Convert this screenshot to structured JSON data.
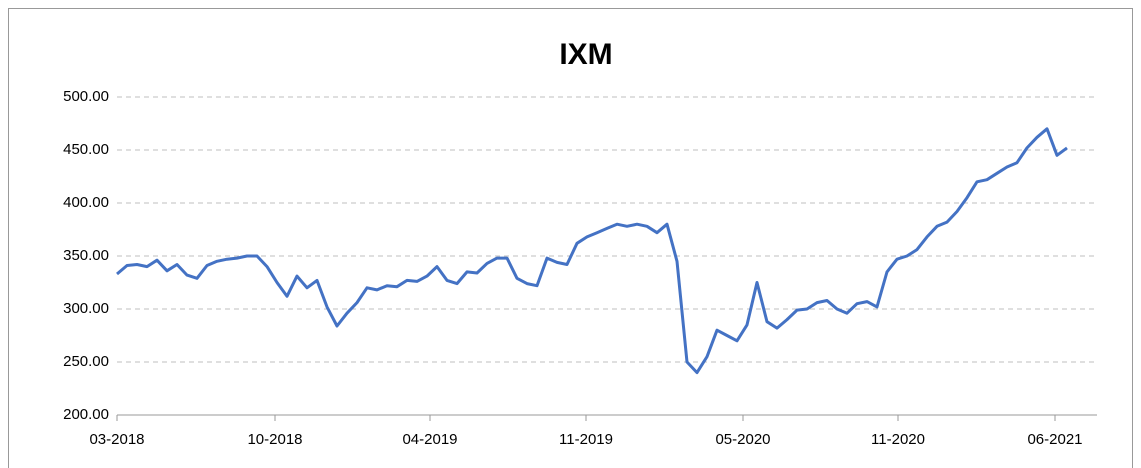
{
  "chart_data": {
    "type": "line",
    "title": "IXM",
    "series": [
      {
        "name": "IXM",
        "color": "#4472c4",
        "values": [
          333,
          341,
          342,
          340,
          346,
          336,
          342,
          332,
          329,
          341,
          345,
          347,
          348,
          350,
          350,
          340,
          325,
          312,
          331,
          320,
          327,
          302,
          284,
          296,
          306,
          320,
          318,
          322,
          321,
          327,
          326,
          331,
          340,
          327,
          324,
          335,
          334,
          343,
          348,
          348,
          329,
          324,
          322,
          348,
          344,
          342,
          362,
          368,
          372,
          376,
          380,
          378,
          380,
          378,
          372,
          380,
          345,
          250,
          240,
          255,
          280,
          275,
          270,
          285,
          325,
          288,
          282,
          290,
          299,
          300,
          306,
          308,
          300,
          296,
          305,
          307,
          302,
          335,
          347,
          350,
          356,
          368,
          378,
          382,
          392,
          405,
          420,
          422,
          428,
          434,
          438,
          452,
          462,
          470,
          445,
          452
        ]
      }
    ],
    "xlim": [
      0,
      98
    ],
    "xticks": [
      {
        "value": 0,
        "label": "03-2018"
      },
      {
        "value": 15.8,
        "label": "10-2018"
      },
      {
        "value": 31.3,
        "label": "04-2019"
      },
      {
        "value": 46.9,
        "label": "11-2019"
      },
      {
        "value": 62.6,
        "label": "05-2020"
      },
      {
        "value": 78.1,
        "label": "11-2020"
      },
      {
        "value": 93.8,
        "label": "06-2021"
      }
    ],
    "ylim": [
      200,
      500
    ],
    "yticks": [
      {
        "value": 200,
        "label": "200.00"
      },
      {
        "value": 250,
        "label": "250.00"
      },
      {
        "value": 300,
        "label": "300.00"
      },
      {
        "value": 350,
        "label": "350.00"
      },
      {
        "value": 400,
        "label": "400.00"
      },
      {
        "value": 450,
        "label": "450.00"
      },
      {
        "value": 500,
        "label": "500.00"
      }
    ],
    "grid": true
  }
}
